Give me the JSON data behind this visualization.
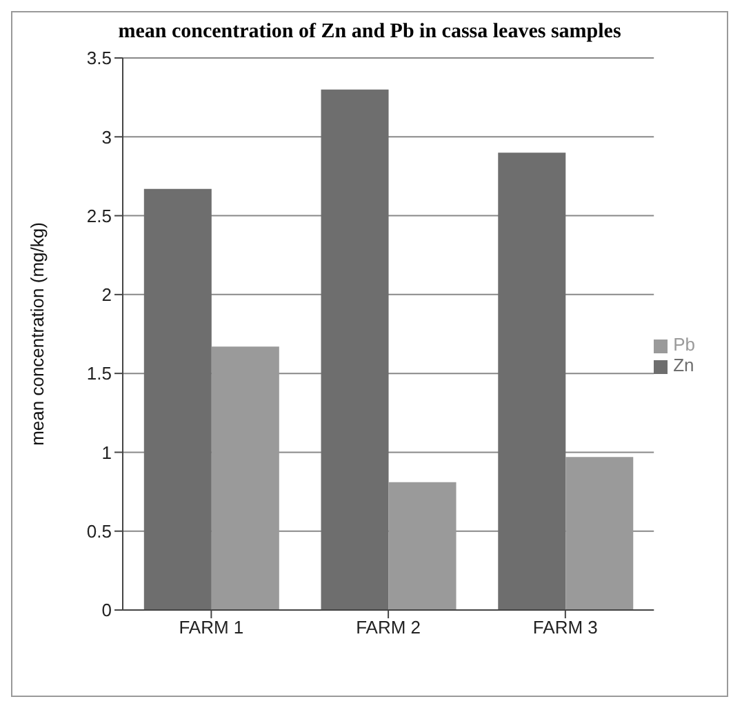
{
  "chart_data": {
    "type": "bar",
    "title": "mean concentration of Zn and Pb in cassa leaves samples",
    "ylabel": "mean concentration (mg/kg)",
    "categories": [
      "FARM 1",
      "FARM 2",
      "FARM 3"
    ],
    "series": [
      {
        "name": "Zn",
        "color": "#6e6e6e",
        "values": [
          2.67,
          3.3,
          2.9
        ]
      },
      {
        "name": "Pb",
        "color": "#9a9a9a",
        "values": [
          1.67,
          0.81,
          0.97
        ]
      }
    ],
    "ylim": [
      0,
      3.5
    ],
    "yticks": [
      0,
      0.5,
      1,
      1.5,
      2,
      2.5,
      3,
      3.5
    ],
    "grid": "y",
    "legend": "right"
  }
}
